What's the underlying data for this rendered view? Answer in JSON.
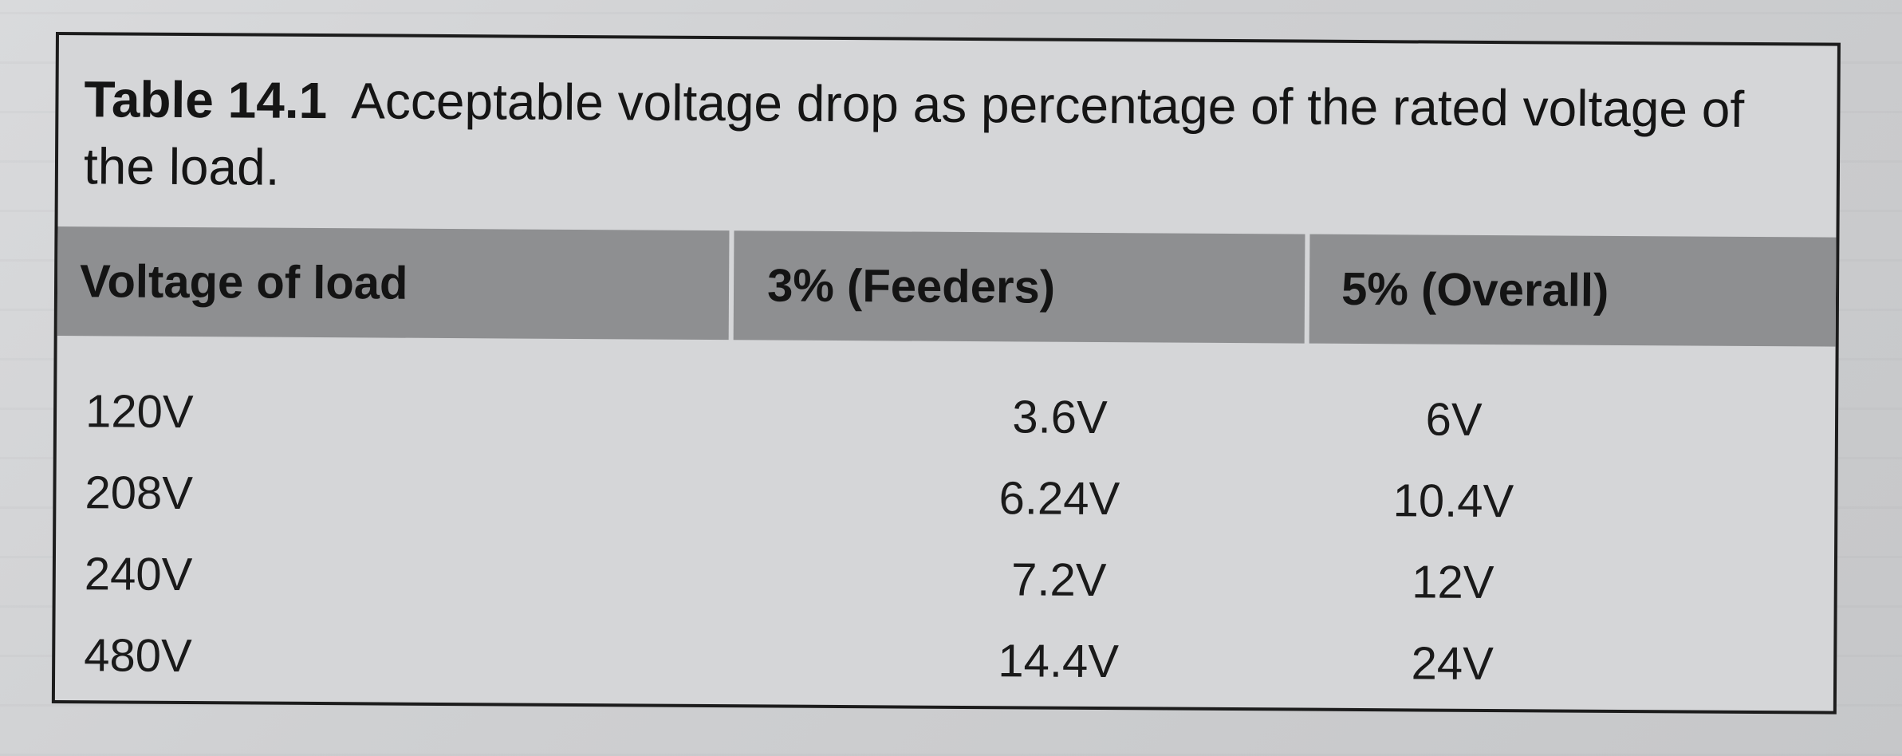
{
  "table": {
    "caption_number": "Table 14.1",
    "caption_text": "Acceptable voltage drop as percentage of the rated voltage of the load.",
    "headers": [
      "Voltage of load",
      "3% (Feeders)",
      "5% (Overall)"
    ],
    "rows": [
      [
        "120V",
        "3.6V",
        "6V"
      ],
      [
        "208V",
        "6.24V",
        "10.4V"
      ],
      [
        "240V",
        "7.2V",
        "12V"
      ],
      [
        "480V",
        "14.4V",
        "24V"
      ]
    ],
    "colors": {
      "header_bg": "#8e8f91",
      "frame_border": "#1c1c1c",
      "paper": "#d5d6d8"
    }
  }
}
